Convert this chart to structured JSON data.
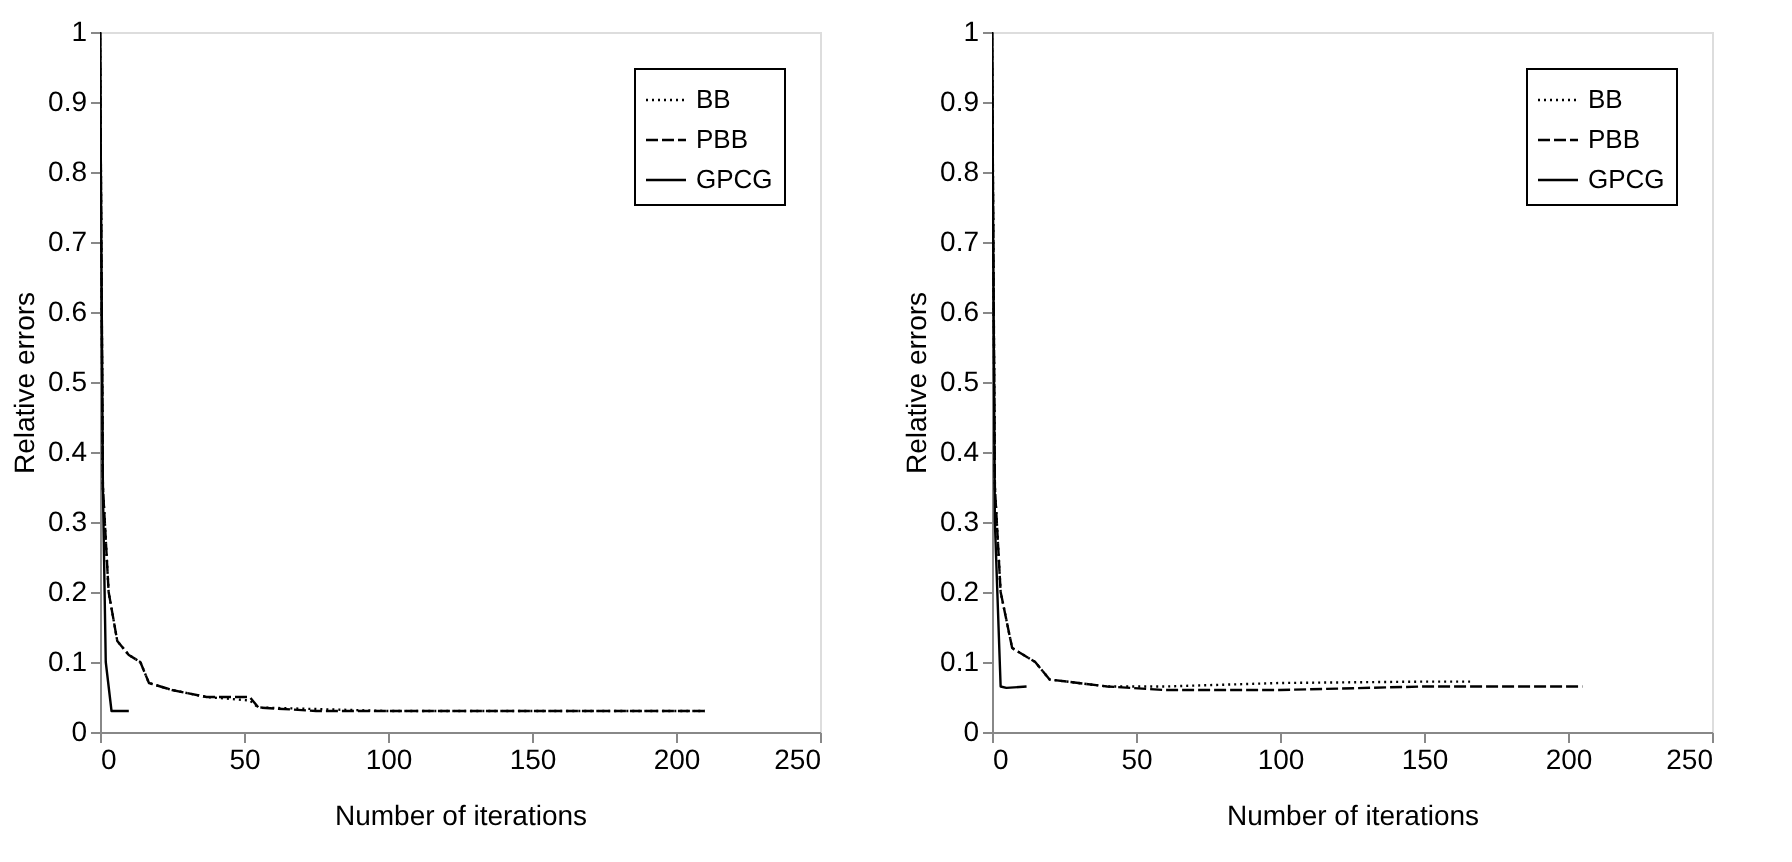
{
  "chart_data": [
    {
      "type": "line",
      "xlabel": "Number of iterations",
      "ylabel": "Relative errors",
      "xlim": [
        0,
        250
      ],
      "ylim": [
        0,
        1
      ],
      "xticks": [
        0,
        50,
        100,
        150,
        200,
        250
      ],
      "yticks": [
        0,
        0.1,
        0.2,
        0.3,
        0.4,
        0.5,
        0.6,
        0.7,
        0.8,
        0.9,
        1
      ],
      "grid": false,
      "legend": "top right",
      "series": [
        {
          "name": "BB",
          "color": "#000000",
          "line_style": "dotted",
          "x": [
            0,
            1,
            3,
            6,
            10,
            14,
            17,
            25,
            37,
            52,
            55,
            100,
            150,
            210
          ],
          "values": [
            1,
            0.35,
            0.2,
            0.13,
            0.11,
            0.1,
            0.07,
            0.06,
            0.05,
            0.045,
            0.035,
            0.03,
            0.03,
            0.03
          ]
        },
        {
          "name": "PBB",
          "color": "#000000",
          "line_style": "dashed",
          "x": [
            0,
            1,
            3,
            6,
            10,
            14,
            17,
            25,
            37,
            52,
            55,
            75,
            100,
            150,
            210
          ],
          "values": [
            1,
            0.35,
            0.2,
            0.13,
            0.11,
            0.1,
            0.07,
            0.06,
            0.05,
            0.05,
            0.035,
            0.03,
            0.03,
            0.03,
            0.03
          ]
        },
        {
          "name": "GPCG",
          "color": "#000000",
          "line_style": "solid",
          "x": [
            0,
            1,
            2,
            4,
            10
          ],
          "values": [
            1,
            0.35,
            0.1,
            0.03,
            0.03
          ]
        }
      ]
    },
    {
      "type": "line",
      "xlabel": "Number of iterations",
      "ylabel": "Relative errors",
      "xlim": [
        0,
        250
      ],
      "ylim": [
        0,
        1
      ],
      "xticks": [
        0,
        50,
        100,
        150,
        200,
        250
      ],
      "yticks": [
        0,
        0.1,
        0.2,
        0.3,
        0.4,
        0.5,
        0.6,
        0.7,
        0.8,
        0.9,
        1
      ],
      "grid": false,
      "legend": "top right",
      "series": [
        {
          "name": "BB",
          "color": "#000000",
          "line_style": "dotted",
          "x": [
            0,
            1,
            3,
            7,
            15,
            20,
            40,
            60,
            100,
            150,
            166
          ],
          "values": [
            1,
            0.35,
            0.2,
            0.12,
            0.1,
            0.075,
            0.065,
            0.065,
            0.07,
            0.072,
            0.072
          ]
        },
        {
          "name": "PBB",
          "color": "#000000",
          "line_style": "dashed",
          "x": [
            0,
            1,
            3,
            7,
            15,
            20,
            40,
            60,
            100,
            150,
            205
          ],
          "values": [
            1,
            0.35,
            0.2,
            0.12,
            0.1,
            0.075,
            0.065,
            0.06,
            0.06,
            0.065,
            0.065
          ]
        },
        {
          "name": "GPCG",
          "color": "#000000",
          "line_style": "solid",
          "x": [
            0,
            1,
            3,
            5,
            12
          ],
          "values": [
            1,
            0.3,
            0.065,
            0.063,
            0.065
          ]
        }
      ]
    }
  ]
}
